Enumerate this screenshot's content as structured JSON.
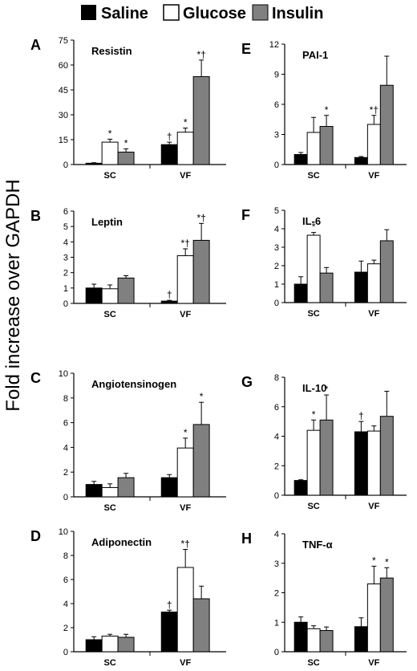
{
  "figure": {
    "ylabel": "Fold increase over GAPDH",
    "legend": [
      {
        "label": "Saline",
        "color": "#000000"
      },
      {
        "label": "Glucose",
        "color": "#ffffff"
      },
      {
        "label": "Insulin",
        "color": "#808080"
      }
    ],
    "colors": {
      "saline": "#000000",
      "glucose": "#ffffff",
      "insulin": "#808080",
      "axis": "#000000"
    }
  },
  "chart_data": [
    {
      "panel": "A",
      "title": "Resistin",
      "type": "bar",
      "categories": [
        "SC",
        "VF"
      ],
      "yticks": [
        0,
        15,
        30,
        45,
        60,
        75
      ],
      "ylim": [
        0,
        75
      ],
      "series": [
        {
          "name": "Saline",
          "values": [
            0.8,
            12
          ],
          "errors": [
            0.3,
            1.5
          ],
          "marks": [
            "",
            "†"
          ]
        },
        {
          "name": "Glucose",
          "values": [
            13.5,
            19.5
          ],
          "errors": [
            1.8,
            2.5
          ],
          "marks": [
            "*",
            "*"
          ]
        },
        {
          "name": "Insulin",
          "values": [
            7.5,
            53
          ],
          "errors": [
            2,
            10
          ],
          "marks": [
            "*",
            "*†"
          ]
        }
      ]
    },
    {
      "panel": "E",
      "title": "PAI-1",
      "type": "bar",
      "categories": [
        "SC",
        "VF"
      ],
      "yticks": [
        0,
        3,
        6,
        9,
        12
      ],
      "ylim": [
        0,
        12
      ],
      "series": [
        {
          "name": "Saline",
          "values": [
            1,
            0.7
          ],
          "errors": [
            0.2,
            0.1
          ],
          "marks": [
            "",
            ""
          ]
        },
        {
          "name": "Glucose",
          "values": [
            3.2,
            4
          ],
          "errors": [
            1.5,
            0.9
          ],
          "marks": [
            "",
            "*†"
          ]
        },
        {
          "name": "Insulin",
          "values": [
            3.8,
            7.9
          ],
          "errors": [
            1.1,
            2.9
          ],
          "marks": [
            "*",
            ""
          ]
        }
      ]
    },
    {
      "panel": "B",
      "title": "Leptin",
      "type": "bar",
      "categories": [
        "SC",
        "VF"
      ],
      "yticks": [
        0,
        1,
        2,
        3,
        4,
        5,
        6
      ],
      "ylim": [
        0,
        6
      ],
      "series": [
        {
          "name": "Saline",
          "values": [
            1,
            0.15
          ],
          "errors": [
            0.25,
            0.05
          ],
          "marks": [
            "",
            "†"
          ]
        },
        {
          "name": "Glucose",
          "values": [
            0.95,
            3.1
          ],
          "errors": [
            0.25,
            0.45
          ],
          "marks": [
            "",
            "*†"
          ]
        },
        {
          "name": "Insulin",
          "values": [
            1.65,
            4.1
          ],
          "errors": [
            0.15,
            1.1
          ],
          "marks": [
            "",
            "*†"
          ]
        }
      ]
    },
    {
      "panel": "F",
      "title": "IL-6",
      "type": "bar",
      "categories": [
        "SC",
        "VF"
      ],
      "yticks": [
        0,
        1,
        2,
        3,
        4,
        5
      ],
      "ylim": [
        0,
        5
      ],
      "series": [
        {
          "name": "Saline",
          "values": [
            1,
            1.65
          ],
          "errors": [
            0.4,
            0.6
          ],
          "marks": [
            "",
            ""
          ]
        },
        {
          "name": "Glucose",
          "values": [
            3.65,
            2.1
          ],
          "errors": [
            0.15,
            0.2
          ],
          "marks": [
            "*",
            ""
          ]
        },
        {
          "name": "Insulin",
          "values": [
            1.6,
            3.35
          ],
          "errors": [
            0.3,
            0.6
          ],
          "marks": [
            "",
            ""
          ]
        }
      ]
    },
    {
      "panel": "C",
      "title": "Angiotensinogen",
      "type": "bar",
      "categories": [
        "SC",
        "VF"
      ],
      "yticks": [
        0,
        2,
        4,
        6,
        8,
        10
      ],
      "ylim": [
        0,
        10
      ],
      "series": [
        {
          "name": "Saline",
          "values": [
            1,
            1.55
          ],
          "errors": [
            0.25,
            0.25
          ],
          "marks": [
            "",
            ""
          ]
        },
        {
          "name": "Glucose",
          "values": [
            0.75,
            3.95
          ],
          "errors": [
            0.3,
            0.8
          ],
          "marks": [
            "",
            "*"
          ]
        },
        {
          "name": "Insulin",
          "values": [
            1.55,
            5.85
          ],
          "errors": [
            0.35,
            1.8
          ],
          "marks": [
            "",
            "*"
          ]
        }
      ]
    },
    {
      "panel": "G",
      "title": "IL-10",
      "type": "bar",
      "categories": [
        "SC",
        "VF"
      ],
      "yticks": [
        0,
        2,
        4,
        6,
        8
      ],
      "ylim": [
        0,
        8
      ],
      "series": [
        {
          "name": "Saline",
          "values": [
            1,
            4.3
          ],
          "errors": [
            0.05,
            0.7
          ],
          "marks": [
            "",
            "†"
          ]
        },
        {
          "name": "Glucose",
          "values": [
            4.4,
            4.35
          ],
          "errors": [
            0.7,
            0.35
          ],
          "marks": [
            "*",
            ""
          ]
        },
        {
          "name": "Insulin",
          "values": [
            5.1,
            5.35
          ],
          "errors": [
            1.7,
            1.7
          ],
          "marks": [
            "*",
            ""
          ]
        }
      ]
    },
    {
      "panel": "D",
      "title": "Adiponectin",
      "type": "bar",
      "categories": [
        "SC",
        "VF"
      ],
      "yticks": [
        0,
        2,
        4,
        6,
        8,
        10
      ],
      "ylim": [
        0,
        10
      ],
      "series": [
        {
          "name": "Saline",
          "values": [
            1,
            3.3
          ],
          "errors": [
            0.25,
            0.15
          ],
          "marks": [
            "",
            "†"
          ]
        },
        {
          "name": "Glucose",
          "values": [
            1.3,
            7
          ],
          "errors": [
            0.15,
            1.5
          ],
          "marks": [
            "",
            "*†"
          ]
        },
        {
          "name": "Insulin",
          "values": [
            1.2,
            4.4
          ],
          "errors": [
            0.25,
            1.05
          ],
          "marks": [
            "",
            ""
          ]
        }
      ]
    },
    {
      "panel": "H",
      "title": "TNF-α",
      "type": "bar",
      "categories": [
        "SC",
        "VF"
      ],
      "yticks": [
        0,
        1,
        2,
        3,
        4
      ],
      "ylim": [
        0,
        4
      ],
      "series": [
        {
          "name": "Saline",
          "values": [
            1,
            0.85
          ],
          "errors": [
            0.18,
            0.3
          ],
          "marks": [
            "",
            ""
          ]
        },
        {
          "name": "Glucose",
          "values": [
            0.78,
            2.3
          ],
          "errors": [
            0.1,
            0.6
          ],
          "marks": [
            "",
            "*"
          ]
        },
        {
          "name": "Insulin",
          "values": [
            0.72,
            2.5
          ],
          "errors": [
            0.12,
            0.35
          ],
          "marks": [
            "",
            "*"
          ]
        }
      ]
    }
  ]
}
